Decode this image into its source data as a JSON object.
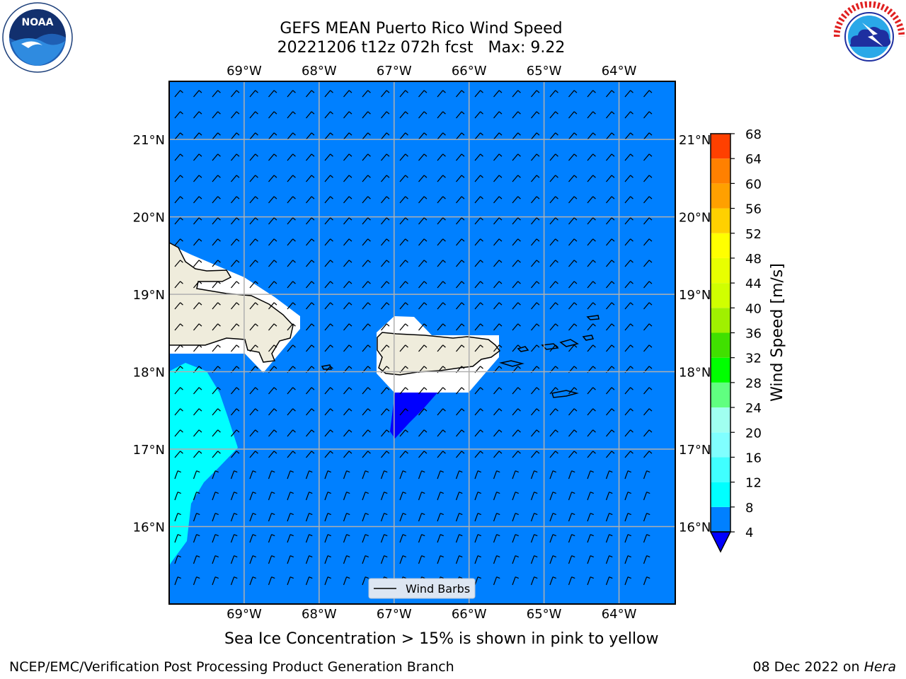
{
  "title": {
    "line1": "GEFS MEAN Puerto Rico Wind Speed",
    "line2": "20221206 t12z 072h fcst   Max: 9.22"
  },
  "logos": {
    "left": "noaa-logo",
    "left_text": "NOAA",
    "left_ring": "NATIONAL OCEANIC AND ATMOSPHERIC ADMINISTRATION · U.S. DEPARTMENT OF COMMERCE",
    "right": "nws-logo",
    "right_ring": "NATIONAL WEATHER SERVICE"
  },
  "axes": {
    "lon_labels": [
      "69°W",
      "68°W",
      "67°W",
      "66°W",
      "65°W",
      "64°W"
    ],
    "lon_values": [
      -69,
      -68,
      -67,
      -66,
      -65,
      -64
    ],
    "lat_labels": [
      "21°N",
      "20°N",
      "19°N",
      "18°N",
      "17°N",
      "16°N"
    ],
    "lat_values": [
      21,
      20,
      19,
      18,
      17,
      16
    ],
    "lon_range": [
      -70.0,
      -63.25
    ],
    "lat_range": [
      15.0,
      21.75
    ]
  },
  "legend": {
    "label": "Wind Barbs"
  },
  "colorbar": {
    "label": "Wind Speed [m/s]",
    "ticks": [
      "68",
      "64",
      "60",
      "56",
      "52",
      "48",
      "44",
      "40",
      "36",
      "32",
      "28",
      "24",
      "20",
      "16",
      "12",
      "8",
      "4"
    ],
    "levels": [
      4,
      8,
      12,
      16,
      20,
      24,
      28,
      32,
      36,
      40,
      44,
      48,
      52,
      56,
      60,
      64,
      68
    ],
    "colors": [
      "#0080ff",
      "#00ffff",
      "#40ffff",
      "#80ffff",
      "#a0fff0",
      "#60ff80",
      "#00ff00",
      "#40e000",
      "#a0f000",
      "#d0ff00",
      "#e8ff00",
      "#ffff00",
      "#ffd000",
      "#ffa000",
      "#ff8000",
      "#ff4000",
      "#ff0000"
    ],
    "under_color": "#0000ff"
  },
  "colors": {
    "sea": "#0080ff",
    "land": "#efecdc",
    "calm": "#0000ff",
    "wind8": "#00ffff",
    "grid": "#b0b0b0"
  },
  "note": "Sea Ice Concentration > 15% is shown in pink to yellow",
  "footer": {
    "left": "NCEP/EMC/Verification Post Processing Product Generation Branch",
    "date": "08 Dec 2022 on ",
    "host": "Hera"
  }
}
